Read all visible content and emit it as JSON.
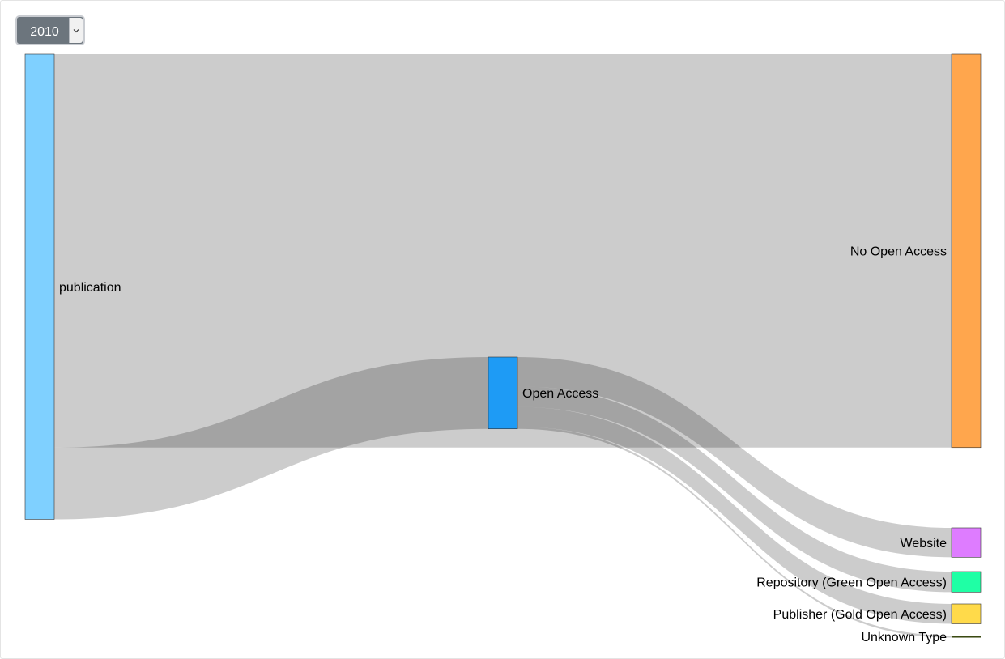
{
  "year_select": {
    "value": "2010"
  },
  "chart_data": {
    "type": "sankey",
    "title": "",
    "nodes": [
      {
        "id": "publication",
        "label": "publication",
        "color": "#7fd0ff"
      },
      {
        "id": "open_access",
        "label": "Open Access",
        "color": "#1e9bf5"
      },
      {
        "id": "no_open_access",
        "label": "No Open Access",
        "color": "#ffa64d"
      },
      {
        "id": "website",
        "label": "Website",
        "color": "#de7cff"
      },
      {
        "id": "repository",
        "label": "Repository (Green Open Access)",
        "color": "#1fffa5"
      },
      {
        "id": "publisher",
        "label": "Publisher (Gold Open Access)",
        "color": "#ffda4a"
      },
      {
        "id": "unknown",
        "label": "Unknown Type",
        "color": "#3b4a12"
      }
    ],
    "links": [
      {
        "source": "publication",
        "target": "no_open_access",
        "value": 575
      },
      {
        "source": "publication",
        "target": "open_access",
        "value": 105
      },
      {
        "source": "open_access",
        "target": "website",
        "value": 43
      },
      {
        "source": "open_access",
        "target": "repository",
        "value": 30
      },
      {
        "source": "open_access",
        "target": "publisher",
        "value": 29
      },
      {
        "source": "open_access",
        "target": "unknown",
        "value": 3
      }
    ]
  }
}
